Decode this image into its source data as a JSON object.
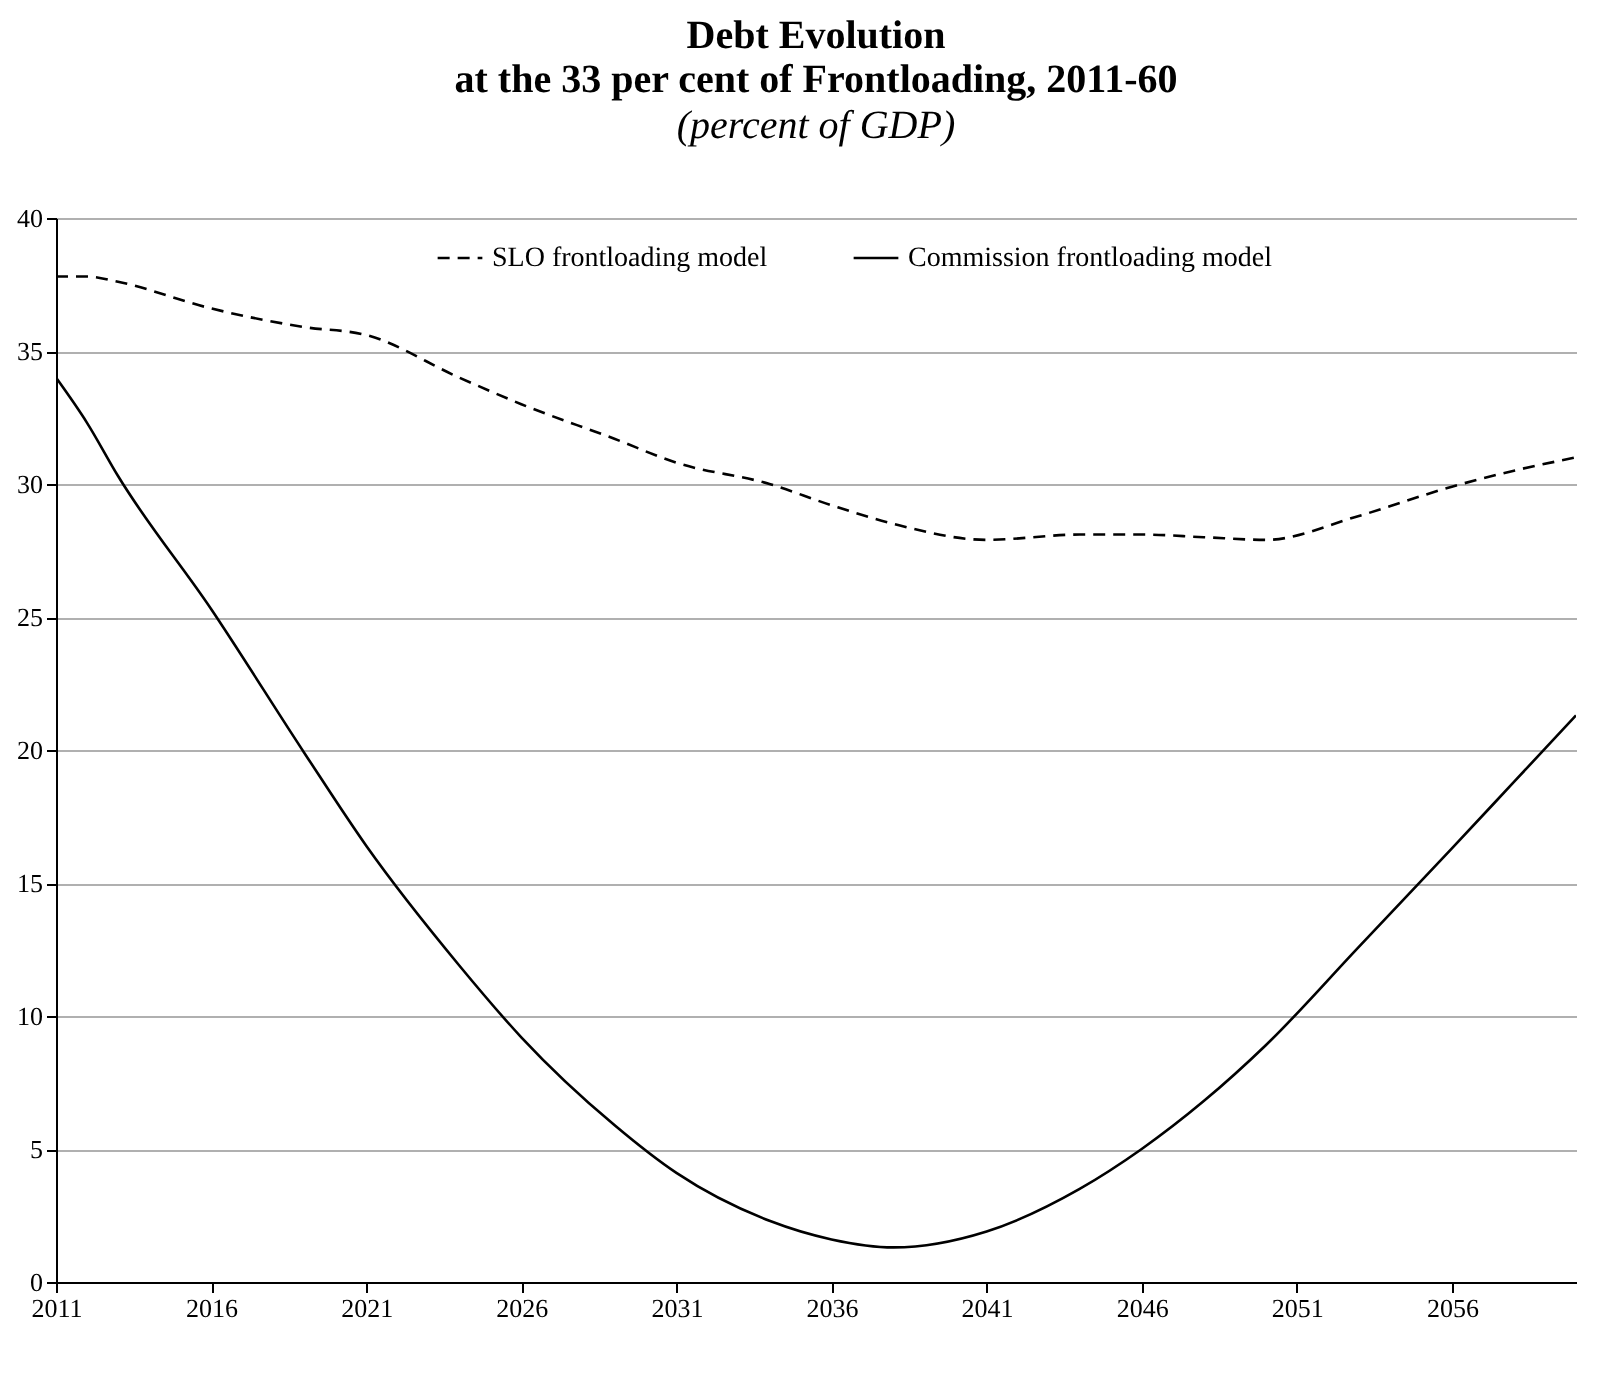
{
  "chart_data": {
    "type": "line",
    "title": "Debt Evolution\nat the 33 per cent of Frontloading, 2011-60",
    "subtitle": "(percent of GDP)",
    "x": [
      2011,
      2012,
      2013,
      2016,
      2019,
      2021,
      2024,
      2026,
      2029,
      2031,
      2034,
      2036,
      2038,
      2041,
      2044,
      2046,
      2048,
      2050,
      2053,
      2056,
      2058,
      2060
    ],
    "series": [
      {
        "name": "SLO frontloading model",
        "color": "#000000",
        "line_style": "dashed",
        "values": [
          37.8,
          37.8,
          37.6,
          36.6,
          35.9,
          35.6,
          34.0,
          33.0,
          31.7,
          30.8,
          30.0,
          29.2,
          28.5,
          27.9,
          28.1,
          28.1,
          28.0,
          27.9,
          28.8,
          29.9,
          30.5,
          31.0
        ]
      },
      {
        "name": "Commission frontloading model",
        "color": "#000000",
        "line_style": "solid",
        "values": [
          34.0,
          32.3,
          30.3,
          25.3,
          19.9,
          16.4,
          11.9,
          9.2,
          5.9,
          4.1,
          2.3,
          1.6,
          1.3,
          1.9,
          3.5,
          5.0,
          6.8,
          8.9,
          12.6,
          16.3,
          18.8,
          21.3
        ]
      }
    ],
    "xlim": [
      2011,
      2060
    ],
    "xticks": [
      2011,
      2016,
      2021,
      2026,
      2031,
      2036,
      2041,
      2046,
      2051,
      2056
    ],
    "ylim": [
      0,
      40
    ],
    "yticks": [
      0,
      5,
      10,
      15,
      20,
      25,
      30,
      35,
      40
    ],
    "grid": "y",
    "legend": "top"
  }
}
